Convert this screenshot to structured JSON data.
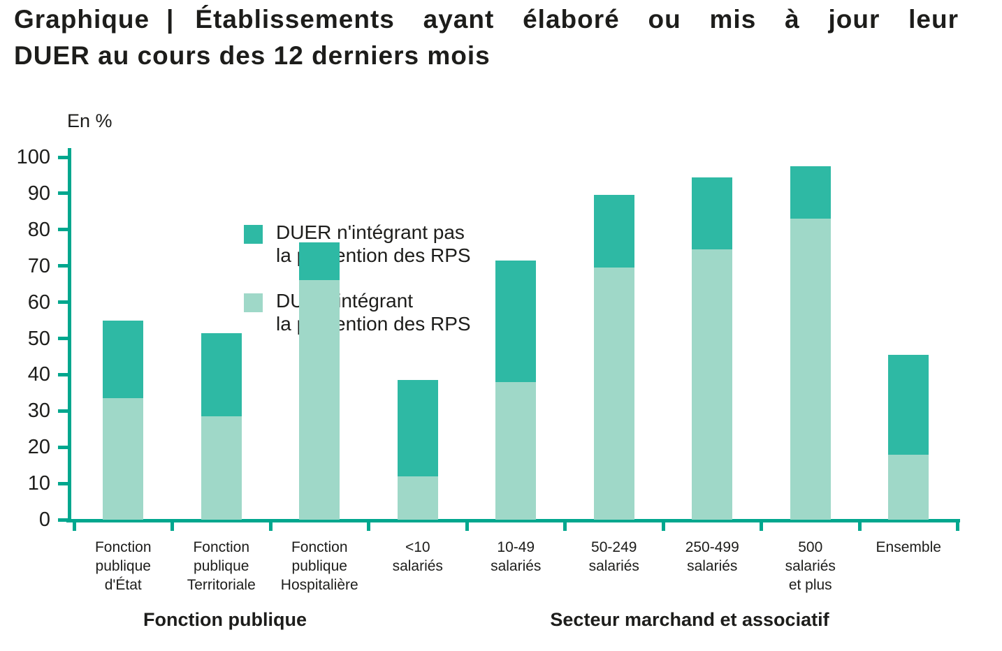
{
  "title": {
    "prefix": "Graphique",
    "separator": "|",
    "line1_rest": "Établissements ayant élaboré ou mis à jour leur",
    "line2": "DUER au cours des 12 derniers mois"
  },
  "chart_data": {
    "type": "bar",
    "stacked": true,
    "title": "Graphique | Établissements ayant élaboré ou mis à jour leur DUER au cours des 12 derniers mois",
    "unit_label": "En %",
    "ylim": [
      0,
      100
    ],
    "yticks": [
      0,
      10,
      20,
      30,
      40,
      50,
      60,
      70,
      80,
      90,
      100
    ],
    "grid": false,
    "legend_position": "top-center",
    "axis_color": "#00a78e",
    "text_color": "#1d1d1b",
    "categories": [
      "Fonction publique d'État",
      "Fonction publique Territoriale",
      "Fonction publique Hospitalière",
      "<10 salariés",
      "10-49 salariés",
      "50-249 salariés",
      "250-499 salariés",
      "500 salariés et plus",
      "Ensemble"
    ],
    "category_labels_multiline": [
      "Fonction\npublique\nd'État",
      "Fonction\npublique\nTerritoriale",
      "Fonction\npublique\nHospitalière",
      "<10\nsalariés",
      "10-49\nsalariés",
      "50-249\nsalariés",
      "250-499\nsalariés",
      "500\nsalariés\net plus",
      "Ensemble"
    ],
    "series": [
      {
        "name": "DUER n'intégrant pas\nla prévention des RPS",
        "color": "#2eb9a4",
        "stack_position": "top",
        "values": [
          21.5,
          23,
          10.5,
          26.5,
          33.5,
          20,
          20,
          14.5,
          27.5
        ]
      },
      {
        "name": "DUER intégrant\nla prévention des RPS",
        "color": "#9fd8c8",
        "stack_position": "bottom",
        "values": [
          33.5,
          28.5,
          66,
          12,
          38,
          69.5,
          74.5,
          83,
          18
        ]
      }
    ],
    "totals": [
      55,
      51.5,
      76.5,
      38.5,
      71.5,
      89.5,
      94.5,
      97.5,
      45.5
    ],
    "group_labels": [
      {
        "label": "Fonction publique",
        "categories_span": [
          0,
          2
        ]
      },
      {
        "label": "Secteur marchand et associatif",
        "categories_span": [
          3,
          7
        ]
      }
    ]
  }
}
